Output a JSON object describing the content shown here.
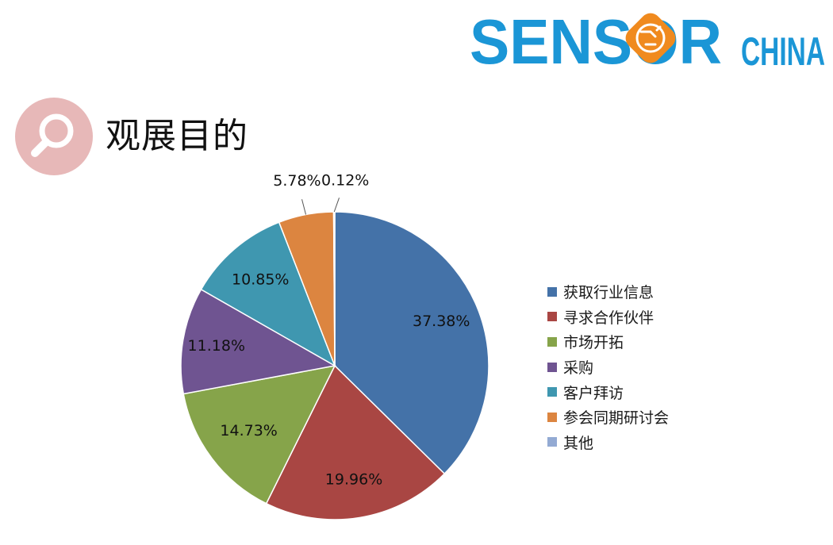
{
  "logo": {
    "brand": "SENSOR",
    "sub": "CHINA",
    "colors": {
      "brand": "#1b96d6",
      "accent": "#f08a1e"
    }
  },
  "section": {
    "title": "观展目的",
    "icon": "magnifier-icon",
    "icon_color": "#e7b8b8"
  },
  "chart_data": {
    "type": "pie",
    "title": "",
    "legend_position": "right",
    "categories": [
      "获取行业信息",
      "寻求合作伙伴",
      "市场开拓",
      "采购",
      "客户拜访",
      "参会同期研讨会",
      "其他"
    ],
    "values": [
      37.38,
      19.96,
      14.73,
      11.18,
      10.85,
      5.78,
      0.12
    ],
    "labels": [
      "37.38%",
      "19.96%",
      "14.73%",
      "11.18%",
      "10.85%",
      "5.78%",
      "0.12%"
    ],
    "colors": [
      "#4472a8",
      "#a94643",
      "#86a44a",
      "#6f5491",
      "#3f97b0",
      "#dc8540",
      "#93aad3"
    ]
  }
}
